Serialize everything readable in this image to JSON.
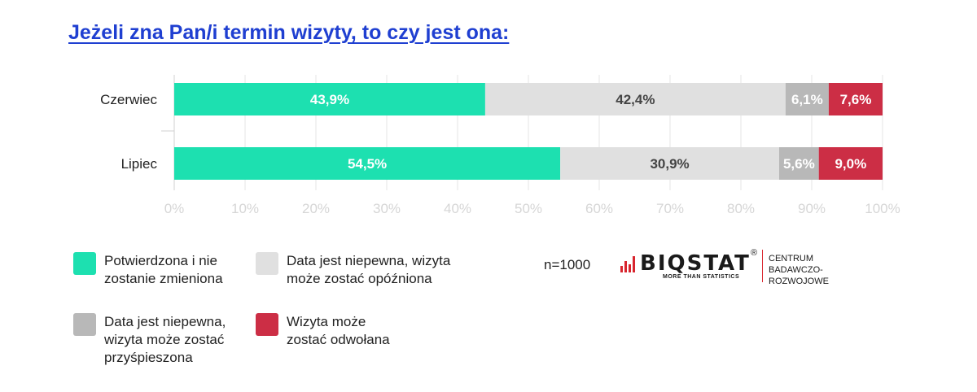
{
  "title": "Jeżeli zna Pan/i termin wizyty, to czy jest ona:",
  "chart_data": {
    "type": "bar",
    "orientation": "horizontal",
    "stacked": true,
    "categories": [
      "Czerwiec",
      "Lipiec"
    ],
    "series": [
      {
        "name": "Potwierdzona i nie zostanie zmieniona",
        "color": "#1de0b0",
        "label_color": "#ffffff",
        "values": [
          43.9,
          54.5
        ],
        "labels": [
          "43,9%",
          "54,5%"
        ]
      },
      {
        "name": "Data jest niepewna, wizyta może zostać opóźniona",
        "color": "#e0e0e0",
        "label_color": "#444444",
        "values": [
          42.4,
          30.9
        ],
        "labels": [
          "42,4%",
          "30,9%"
        ]
      },
      {
        "name": "Data jest niepewna, wizyta może zostać przyśpieszona",
        "color": "#b8b8b8",
        "label_color": "#ffffff",
        "values": [
          6.1,
          5.6
        ],
        "labels": [
          "6,1%",
          "5,6%"
        ]
      },
      {
        "name": "Wizyta może zostać odwołana",
        "color": "#cc2e45",
        "label_color": "#ffffff",
        "values": [
          7.6,
          9.0
        ],
        "labels": [
          "7,6%",
          "9,0%"
        ]
      }
    ],
    "xlim": [
      0,
      100
    ],
    "xticks": [
      "0%",
      "10%",
      "20%",
      "30%",
      "40%",
      "50%",
      "60%",
      "70%",
      "80%",
      "90%",
      "100%"
    ],
    "grid": true,
    "legend_position": "bottom"
  },
  "legend": [
    {
      "label": "Potwierdzona i nie\nzostanie zmieniona",
      "color": "#1de0b0"
    },
    {
      "label": "Data jest niepewna, wizyta\nmoże zostać opóźniona",
      "color": "#e0e0e0"
    },
    {
      "label": "Data jest niepewna,\nwizyta może zostać\nprzyśpieszona",
      "color": "#b8b8b8"
    },
    {
      "label": "Wizyta może\nzostać odwołana",
      "color": "#cc2e45"
    }
  ],
  "sample_size": "n=1000",
  "logo": {
    "word": "BIQSTAT",
    "reg": "®",
    "tagline": "MORE THAN STATISTICS",
    "org": "CENTRUM\nBADAWCZO-ROZWOJOWE",
    "accent": "#d8252e"
  }
}
